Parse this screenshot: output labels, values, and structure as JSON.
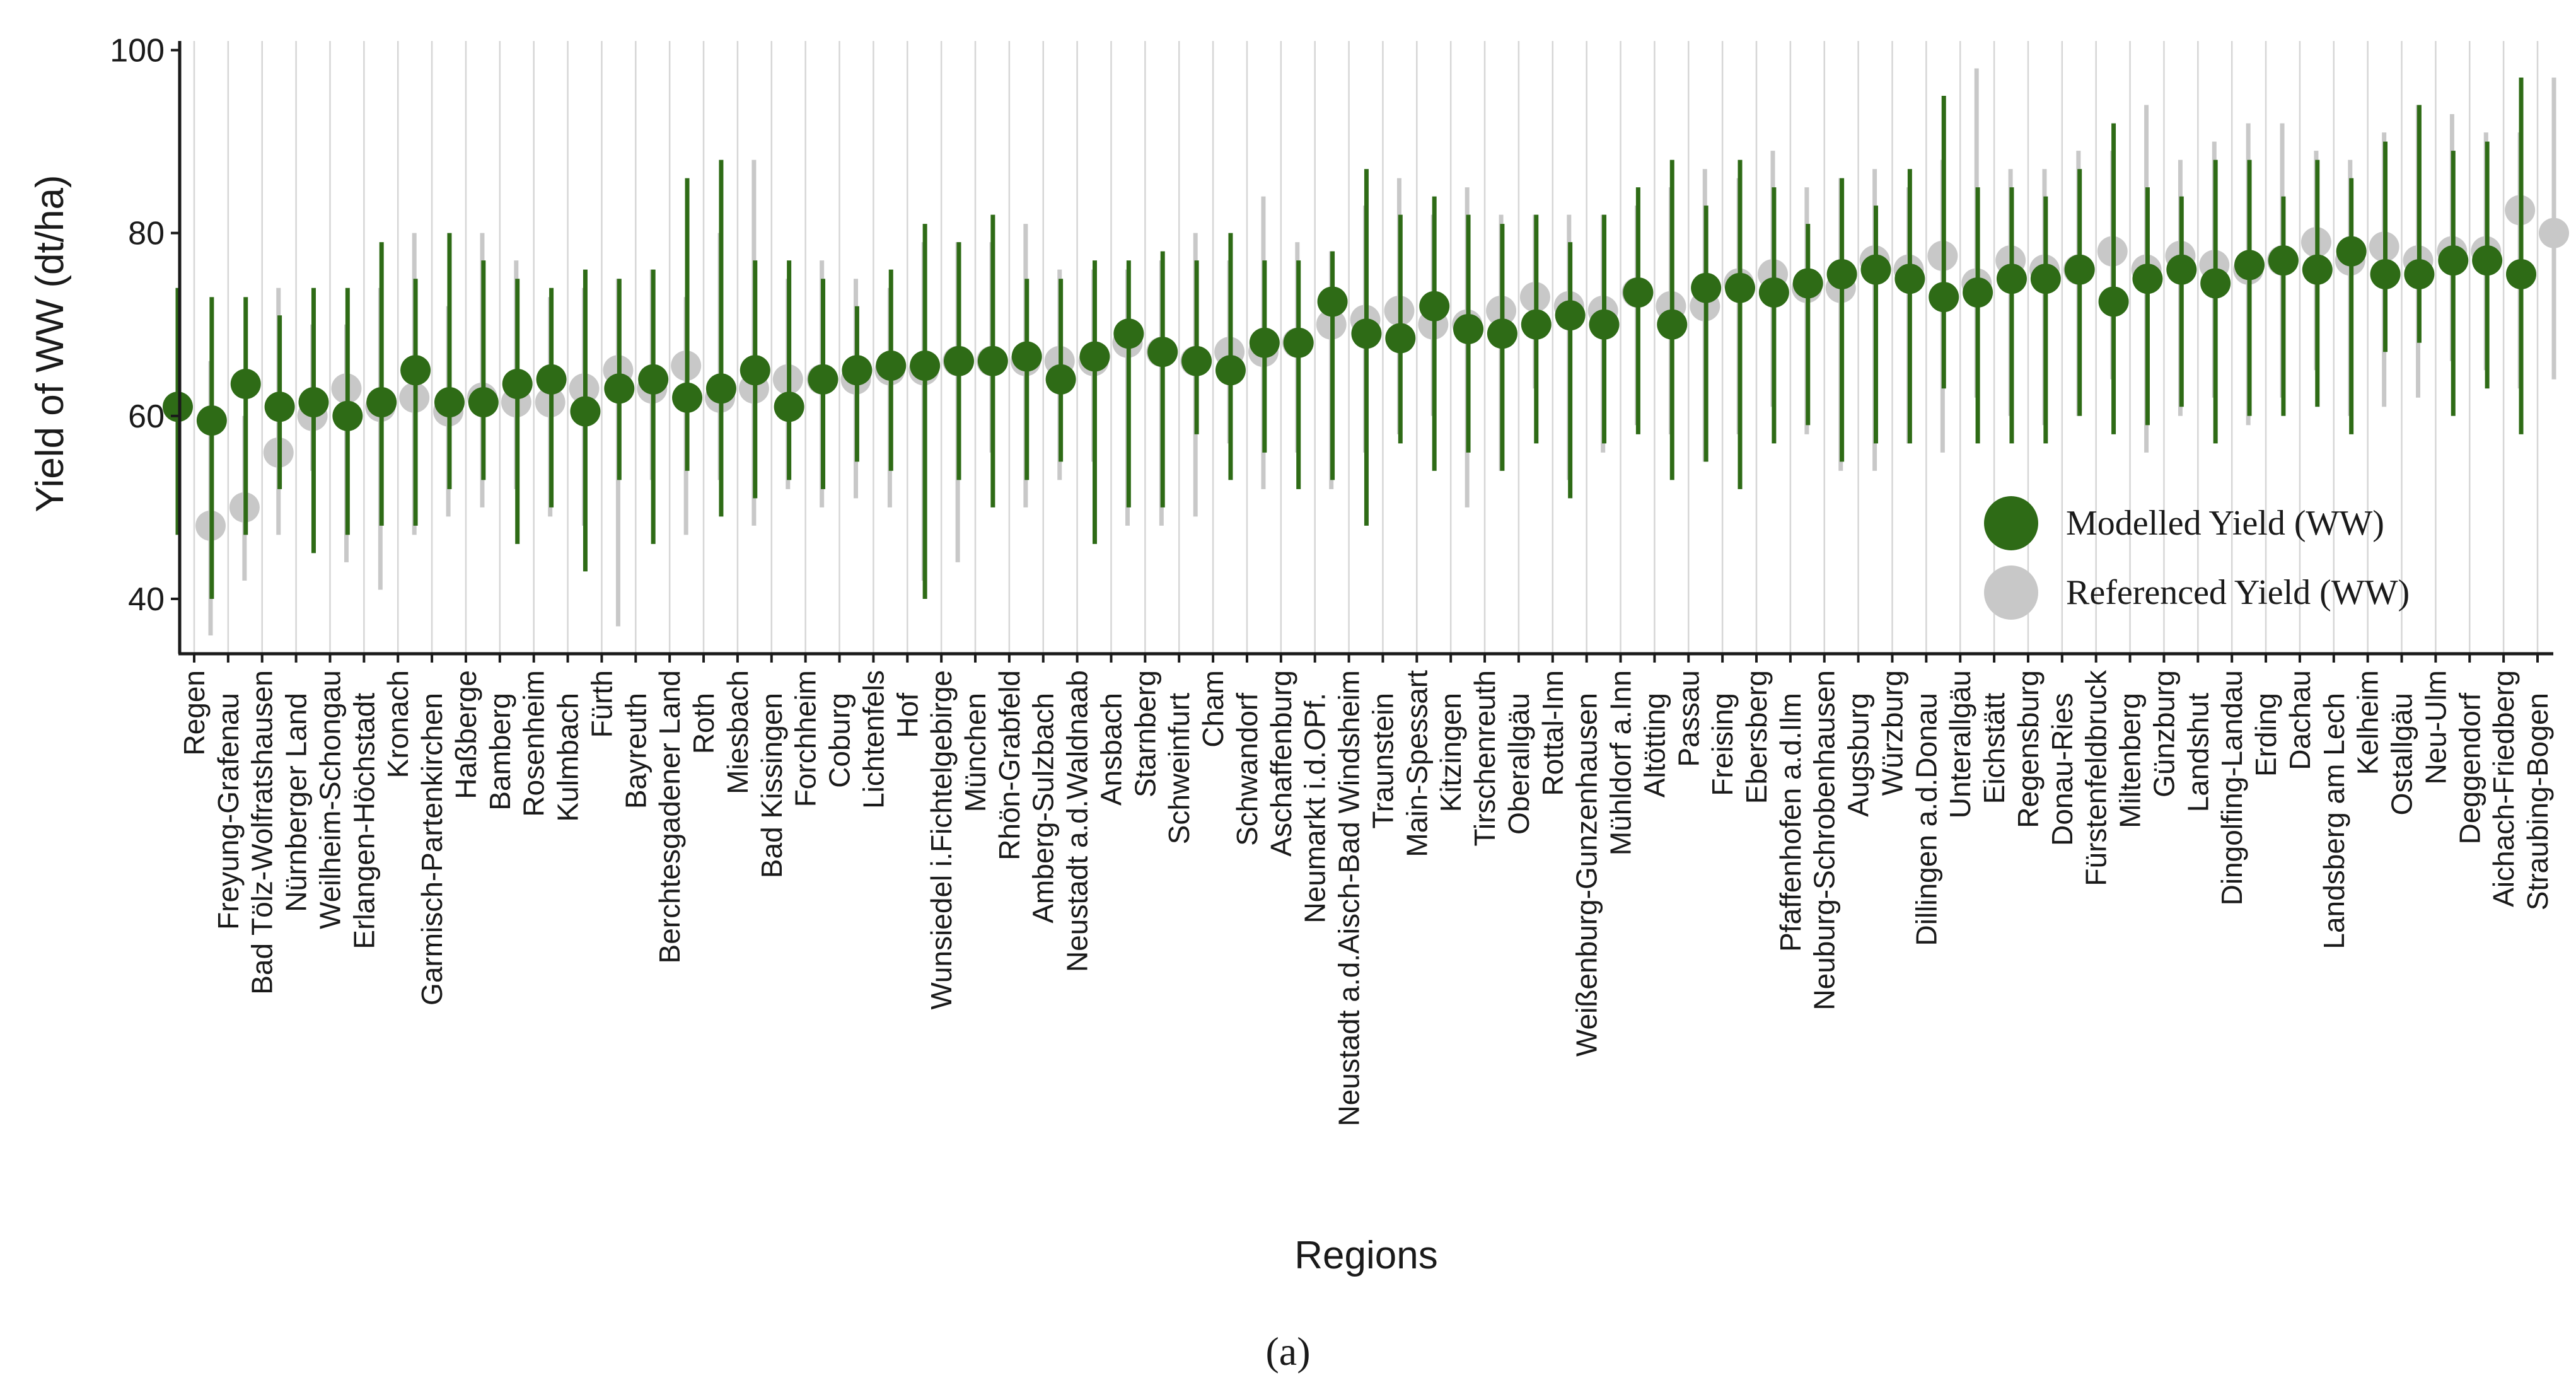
{
  "chart_data": {
    "type": "point-range",
    "title": "",
    "xlabel": "Regions",
    "ylabel": "Yield of WW (dt/ha)",
    "ylim": [
      34,
      101
    ],
    "yticks": [
      "40",
      "60",
      "80",
      "100"
    ],
    "grid": "vertical",
    "legend_position": "right",
    "caption": "(a)",
    "colors": {
      "modelled": "#2E6B16",
      "referenced": "#C8C8C8",
      "grid": "#D6D6D6",
      "axis": "#1a1a1a"
    },
    "series": [
      {
        "name": "Modelled Yield (WW)",
        "key": "modelled"
      },
      {
        "name": "Referenced Yield (WW)",
        "key": "referenced"
      }
    ],
    "regions": [
      {
        "label": "Regen",
        "m": 61,
        "mlo": 47,
        "mhi": 74,
        "r": 48,
        "rlo": 36,
        "rhi": 66
      },
      {
        "label": "Freyung-Grafenau",
        "m": 59.5,
        "mlo": 40,
        "mhi": 73,
        "r": 50,
        "rlo": 42,
        "rhi": 60
      },
      {
        "label": "Bad Tölz-Wolfratshausen",
        "m": 63.5,
        "mlo": 47,
        "mhi": 73,
        "r": 56,
        "rlo": 47,
        "rhi": 74
      },
      {
        "label": "Nürnberger Land",
        "m": 61,
        "mlo": 52,
        "mhi": 71,
        "r": 60,
        "rlo": 54,
        "rhi": 70
      },
      {
        "label": "Weilheim-Schongau",
        "m": 61.5,
        "mlo": 45,
        "mhi": 74,
        "r": 63,
        "rlo": 44,
        "rhi": 70
      },
      {
        "label": "Erlangen-Höchstadt",
        "m": 60,
        "mlo": 47,
        "mhi": 74,
        "r": 61,
        "rlo": 41,
        "rhi": 74
      },
      {
        "label": "Kronach",
        "m": 61.5,
        "mlo": 48,
        "mhi": 79,
        "r": 62,
        "rlo": 47,
        "rhi": 80
      },
      {
        "label": "Garmisch-Partenkirchen",
        "m": 65,
        "mlo": 48,
        "mhi": 75,
        "r": 60.5,
        "rlo": 49,
        "rhi": 72
      },
      {
        "label": "Haßberge",
        "m": 61.5,
        "mlo": 52,
        "mhi": 80,
        "r": 62,
        "rlo": 50,
        "rhi": 80
      },
      {
        "label": "Bamberg",
        "m": 61.5,
        "mlo": 53,
        "mhi": 77,
        "r": 61.5,
        "rlo": 52,
        "rhi": 77
      },
      {
        "label": "Rosenheim",
        "m": 63.5,
        "mlo": 46,
        "mhi": 75,
        "r": 61.5,
        "rlo": 49,
        "rhi": 73
      },
      {
        "label": "Kulmbach",
        "m": 64,
        "mlo": 50,
        "mhi": 74,
        "r": 63,
        "rlo": 48,
        "rhi": 74
      },
      {
        "label": "Fürth",
        "m": 60.5,
        "mlo": 43,
        "mhi": 76,
        "r": 65,
        "rlo": 37,
        "rhi": 75
      },
      {
        "label": "Bayreuth",
        "m": 63,
        "mlo": 53,
        "mhi": 75,
        "r": 63,
        "rlo": 53,
        "rhi": 76
      },
      {
        "label": "Berchtesgadener Land",
        "m": 64,
        "mlo": 46,
        "mhi": 76,
        "r": 65.5,
        "rlo": 47,
        "rhi": 73
      },
      {
        "label": "Roth",
        "m": 62,
        "mlo": 54,
        "mhi": 86,
        "r": 62,
        "rlo": 53,
        "rhi": 80
      },
      {
        "label": "Miesbach",
        "m": 63,
        "mlo": 49,
        "mhi": 88,
        "r": 63,
        "rlo": 48,
        "rhi": 88
      },
      {
        "label": "Bad Kissingen",
        "m": 65,
        "mlo": 51,
        "mhi": 77,
        "r": 64,
        "rlo": 52,
        "rhi": 75
      },
      {
        "label": "Forchheim",
        "m": 61,
        "mlo": 53,
        "mhi": 77,
        "r": 64,
        "rlo": 50,
        "rhi": 77
      },
      {
        "label": "Coburg",
        "m": 64,
        "mlo": 52,
        "mhi": 75,
        "r": 64,
        "rlo": 51,
        "rhi": 75
      },
      {
        "label": "Lichtenfels",
        "m": 65,
        "mlo": 55,
        "mhi": 72,
        "r": 65,
        "rlo": 50,
        "rhi": 74
      },
      {
        "label": "Hof",
        "m": 65.5,
        "mlo": 54,
        "mhi": 76,
        "r": 65,
        "rlo": 42,
        "rhi": 79
      },
      {
        "label": "Wunsiedel i.Fichtelgebirge",
        "m": 65.5,
        "mlo": 40,
        "mhi": 81,
        "r": 66,
        "rlo": 44,
        "rhi": 79
      },
      {
        "label": "München",
        "m": 66,
        "mlo": 53,
        "mhi": 79,
        "r": 66,
        "rlo": 56,
        "rhi": 79
      },
      {
        "label": "Rhön-Grabfeld",
        "m": 66,
        "mlo": 50,
        "mhi": 82,
        "r": 66,
        "rlo": 50,
        "rhi": 81
      },
      {
        "label": "Amberg-Sulzbach",
        "m": 66.5,
        "mlo": 53,
        "mhi": 75,
        "r": 66,
        "rlo": 53,
        "rhi": 76
      },
      {
        "label": "Neustadt a.d.Waldnaab",
        "m": 64,
        "mlo": 55,
        "mhi": 75,
        "r": 66,
        "rlo": 55,
        "rhi": 76
      },
      {
        "label": "Ansbach",
        "m": 66.5,
        "mlo": 46,
        "mhi": 77,
        "r": 68,
        "rlo": 48,
        "rhi": 76
      },
      {
        "label": "Starnberg",
        "m": 69,
        "mlo": 50,
        "mhi": 77,
        "r": 67,
        "rlo": 48,
        "rhi": 77
      },
      {
        "label": "Schweinfurt",
        "m": 67,
        "mlo": 50,
        "mhi": 78,
        "r": 66,
        "rlo": 49,
        "rhi": 80
      },
      {
        "label": "Cham",
        "m": 66,
        "mlo": 58,
        "mhi": 77,
        "r": 67,
        "rlo": 57,
        "rhi": 77
      },
      {
        "label": "Schwandorf",
        "m": 65,
        "mlo": 53,
        "mhi": 80,
        "r": 67,
        "rlo": 52,
        "rhi": 84
      },
      {
        "label": "Aschaffenburg",
        "m": 68,
        "mlo": 56,
        "mhi": 77,
        "r": 68,
        "rlo": 56,
        "rhi": 79
      },
      {
        "label": "Neumarkt i.d.OPf.",
        "m": 68,
        "mlo": 52,
        "mhi": 77,
        "r": 70,
        "rlo": 52,
        "rhi": 78
      },
      {
        "label": "Neustadt a.d.Aisch-Bad Windsheim",
        "m": 72.5,
        "mlo": 53,
        "mhi": 78,
        "r": 70.5,
        "rlo": 56,
        "rhi": 83
      },
      {
        "label": "Traunstein",
        "m": 69,
        "mlo": 48,
        "mhi": 87,
        "r": 71.5,
        "rlo": 58,
        "rhi": 86
      },
      {
        "label": "Main-Spessart",
        "m": 68.5,
        "mlo": 57,
        "mhi": 82,
        "r": 70,
        "rlo": 60,
        "rhi": 82
      },
      {
        "label": "Kitzingen",
        "m": 72,
        "mlo": 54,
        "mhi": 84,
        "r": 70,
        "rlo": 50,
        "rhi": 85
      },
      {
        "label": "Tirschenreuth",
        "m": 69.5,
        "mlo": 56,
        "mhi": 82,
        "r": 71.5,
        "rlo": 54,
        "rhi": 82
      },
      {
        "label": "Oberallgäu",
        "m": 69,
        "mlo": 54,
        "mhi": 81,
        "r": 73,
        "rlo": 63,
        "rhi": 82
      },
      {
        "label": "Rottal-Inn",
        "m": 70,
        "mlo": 57,
        "mhi": 82,
        "r": 72,
        "rlo": 53,
        "rhi": 82
      },
      {
        "label": "Weißenburg-Gunzenhausen",
        "m": 71,
        "mlo": 51,
        "mhi": 79,
        "r": 71.5,
        "rlo": 56,
        "rhi": 82
      },
      {
        "label": "Mühldorf a.Inn",
        "m": 70,
        "mlo": 57,
        "mhi": 82,
        "r": 73.5,
        "rlo": 59,
        "rhi": 83
      },
      {
        "label": "Altötting",
        "m": 73.5,
        "mlo": 58,
        "mhi": 85,
        "r": 72,
        "rlo": 58,
        "rhi": 85
      },
      {
        "label": "Passau",
        "m": 70,
        "mlo": 53,
        "mhi": 88,
        "r": 72,
        "rlo": 55,
        "rhi": 87
      },
      {
        "label": "Freising",
        "m": 74,
        "mlo": 55,
        "mhi": 83,
        "r": 74.5,
        "rlo": 58,
        "rhi": 86
      },
      {
        "label": "Ebersberg",
        "m": 74,
        "mlo": 52,
        "mhi": 88,
        "r": 75.5,
        "rlo": 61,
        "rhi": 89
      },
      {
        "label": "Pfaffenhofen a.d.Ilm",
        "m": 73.5,
        "mlo": 57,
        "mhi": 85,
        "r": 74,
        "rlo": 58,
        "rhi": 85
      },
      {
        "label": "Neuburg-Schrobenhausen",
        "m": 74.5,
        "mlo": 59,
        "mhi": 81,
        "r": 74,
        "rlo": 54,
        "rhi": 86
      },
      {
        "label": "Augsburg",
        "m": 75.5,
        "mlo": 55,
        "mhi": 86,
        "r": 77,
        "rlo": 54,
        "rhi": 87
      },
      {
        "label": "Würzburg",
        "m": 76,
        "mlo": 57,
        "mhi": 83,
        "r": 76,
        "rlo": 57,
        "rhi": 85
      },
      {
        "label": "Dillingen a.d.Donau",
        "m": 75,
        "mlo": 57,
        "mhi": 87,
        "r": 77.5,
        "rlo": 56,
        "rhi": 88
      },
      {
        "label": "Unterallgäu",
        "m": 73,
        "mlo": 63,
        "mhi": 95,
        "r": 74.5,
        "rlo": 62,
        "rhi": 98
      },
      {
        "label": "Eichstätt",
        "m": 73.5,
        "mlo": 57,
        "mhi": 85,
        "r": 77,
        "rlo": 60,
        "rhi": 87
      },
      {
        "label": "Regensburg",
        "m": 75,
        "mlo": 57,
        "mhi": 85,
        "r": 76,
        "rlo": 59,
        "rhi": 87
      },
      {
        "label": "Donau-Ries",
        "m": 75,
        "mlo": 57,
        "mhi": 84,
        "r": 76,
        "rlo": 60,
        "rhi": 89
      },
      {
        "label": "Fürstenfeldbruck",
        "m": 76,
        "mlo": 60,
        "mhi": 87,
        "r": 78,
        "rlo": 64,
        "rhi": 89
      },
      {
        "label": "Miltenberg",
        "m": 72.5,
        "mlo": 58,
        "mhi": 92,
        "r": 76,
        "rlo": 56,
        "rhi": 94
      },
      {
        "label": "Günzburg",
        "m": 75,
        "mlo": 59,
        "mhi": 85,
        "r": 77.5,
        "rlo": 60,
        "rhi": 88
      },
      {
        "label": "Landshut",
        "m": 76,
        "mlo": 61,
        "mhi": 84,
        "r": 76.5,
        "rlo": 62,
        "rhi": 90
      },
      {
        "label": "Dingolfing-Landau",
        "m": 74.5,
        "mlo": 57,
        "mhi": 88,
        "r": 76,
        "rlo": 59,
        "rhi": 92
      },
      {
        "label": "Erding",
        "m": 76.5,
        "mlo": 60,
        "mhi": 88,
        "r": 77,
        "rlo": 62,
        "rhi": 92
      },
      {
        "label": "Dachau",
        "m": 77,
        "mlo": 60,
        "mhi": 84,
        "r": 79,
        "rlo": 65,
        "rhi": 89
      },
      {
        "label": "Landsberg am Lech",
        "m": 76,
        "mlo": 61,
        "mhi": 88,
        "r": 77,
        "rlo": 60,
        "rhi": 88
      },
      {
        "label": "Kelheim",
        "m": 78,
        "mlo": 58,
        "mhi": 86,
        "r": 78.5,
        "rlo": 61,
        "rhi": 91
      },
      {
        "label": "Ostallgäu",
        "m": 75.5,
        "mlo": 67,
        "mhi": 90,
        "r": 77,
        "rlo": 62,
        "rhi": 94
      },
      {
        "label": "Neu-Ulm",
        "m": 75.5,
        "mlo": 68,
        "mhi": 94,
        "r": 78,
        "rlo": 66,
        "rhi": 93
      },
      {
        "label": "Deggendorf",
        "m": 77,
        "mlo": 60,
        "mhi": 89,
        "r": 78,
        "rlo": 65,
        "rhi": 91
      },
      {
        "label": "Aichach-Friedberg",
        "m": 77,
        "mlo": 63,
        "mhi": 90,
        "r": 82.5,
        "rlo": 63,
        "rhi": 91
      },
      {
        "label": "Straubing-Bogen",
        "m": 75.5,
        "mlo": 58,
        "mhi": 97,
        "r": 80,
        "rlo": 64,
        "rhi": 97
      }
    ]
  }
}
